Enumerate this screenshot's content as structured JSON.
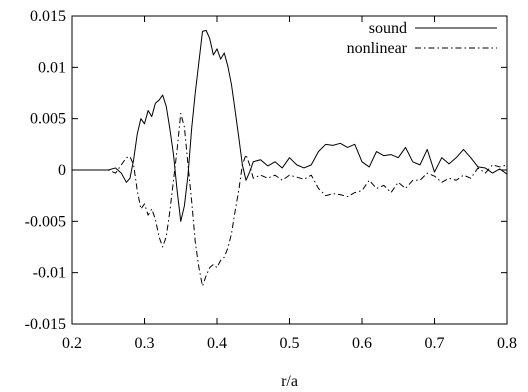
{
  "chart_data": {
    "type": "line",
    "xlabel": "r/a",
    "ylabel": "",
    "xlim": [
      0.2,
      0.8
    ],
    "ylim": [
      -0.015,
      0.015
    ],
    "xticks": [
      0.2,
      0.3,
      0.4,
      0.5,
      0.6,
      0.7,
      0.8
    ],
    "xtick_labels": [
      "0.2",
      "0.3",
      "0.4",
      "0.5",
      "0.6",
      "0.7",
      "0.8"
    ],
    "yticks": [
      -0.015,
      -0.01,
      -0.005,
      0,
      0.005,
      0.01,
      0.015
    ],
    "ytick_labels": [
      "-0.015",
      "-0.01",
      "-0.005",
      "0",
      "0.005",
      "0.01",
      "0.015"
    ],
    "grid": false,
    "legend_position": "top-right",
    "series": [
      {
        "name": "sound",
        "style": "solid",
        "color": "#000000",
        "x": [
          0.2,
          0.25,
          0.26,
          0.268,
          0.275,
          0.28,
          0.285,
          0.29,
          0.295,
          0.3,
          0.305,
          0.31,
          0.315,
          0.32,
          0.325,
          0.33,
          0.335,
          0.34,
          0.345,
          0.35,
          0.355,
          0.36,
          0.365,
          0.37,
          0.375,
          0.38,
          0.385,
          0.39,
          0.395,
          0.4,
          0.405,
          0.41,
          0.415,
          0.42,
          0.425,
          0.43,
          0.435,
          0.44,
          0.445,
          0.45,
          0.46,
          0.47,
          0.48,
          0.49,
          0.5,
          0.51,
          0.52,
          0.53,
          0.54,
          0.55,
          0.56,
          0.57,
          0.58,
          0.59,
          0.6,
          0.61,
          0.62,
          0.63,
          0.64,
          0.65,
          0.66,
          0.67,
          0.68,
          0.69,
          0.7,
          0.71,
          0.72,
          0.73,
          0.74,
          0.75,
          0.76,
          0.77,
          0.78,
          0.79,
          0.8
        ],
        "y": [
          0.0,
          0.0,
          0.0002,
          -0.0003,
          -0.0012,
          -0.0008,
          0.001,
          0.0035,
          0.005,
          0.0045,
          0.0058,
          0.0052,
          0.0065,
          0.0068,
          0.0073,
          0.0062,
          0.004,
          0.0015,
          -0.002,
          -0.005,
          -0.0035,
          -0.0005,
          0.004,
          0.0075,
          0.0105,
          0.0135,
          0.0136,
          0.0128,
          0.0112,
          0.0118,
          0.0108,
          0.0114,
          0.0101,
          0.0083,
          0.0058,
          0.0032,
          0.0005,
          -0.001,
          -0.0002,
          0.0008,
          0.001,
          0.0004,
          0.0008,
          0.0002,
          0.0012,
          0.0005,
          0.0002,
          0.0005,
          0.0018,
          0.0025,
          0.0024,
          0.0026,
          0.0022,
          0.0025,
          0.0008,
          0.0003,
          0.0018,
          0.0014,
          0.0015,
          0.0012,
          0.0022,
          0.0008,
          0.0005,
          0.002,
          -0.0002,
          0.0012,
          0.0006,
          0.0012,
          0.002,
          0.0012,
          0.0003,
          0.0002,
          -0.0003,
          0.0001,
          -0.0004
        ]
      },
      {
        "name": "nonlinear",
        "style": "dashdot",
        "color": "#000000",
        "x": [
          0.2,
          0.25,
          0.26,
          0.268,
          0.275,
          0.28,
          0.285,
          0.29,
          0.295,
          0.3,
          0.305,
          0.31,
          0.315,
          0.32,
          0.325,
          0.33,
          0.335,
          0.34,
          0.345,
          0.35,
          0.355,
          0.36,
          0.365,
          0.37,
          0.375,
          0.38,
          0.385,
          0.39,
          0.395,
          0.4,
          0.405,
          0.41,
          0.415,
          0.42,
          0.425,
          0.43,
          0.435,
          0.44,
          0.445,
          0.45,
          0.46,
          0.47,
          0.48,
          0.49,
          0.5,
          0.51,
          0.52,
          0.53,
          0.54,
          0.55,
          0.56,
          0.57,
          0.58,
          0.59,
          0.6,
          0.61,
          0.62,
          0.63,
          0.64,
          0.65,
          0.66,
          0.67,
          0.68,
          0.69,
          0.7,
          0.71,
          0.72,
          0.73,
          0.74,
          0.75,
          0.76,
          0.77,
          0.78,
          0.79,
          0.8
        ],
        "y": [
          0.0,
          0.0,
          -0.0003,
          0.0005,
          0.0012,
          0.0013,
          0.0005,
          -0.002,
          -0.0038,
          -0.0033,
          -0.0044,
          -0.0038,
          -0.0048,
          -0.0065,
          -0.0075,
          -0.0065,
          -0.004,
          -0.001,
          0.002,
          0.0055,
          0.0042,
          0.0005,
          -0.003,
          -0.007,
          -0.0095,
          -0.0113,
          -0.0103,
          -0.0095,
          -0.0092,
          -0.0095,
          -0.0088,
          -0.0085,
          -0.0076,
          -0.0062,
          -0.004,
          -0.002,
          0.0005,
          0.0015,
          0.0005,
          -0.0008,
          -0.0005,
          -0.0008,
          -0.0005,
          -0.001,
          -0.0005,
          -0.0007,
          -0.0009,
          -0.0005,
          -0.0018,
          -0.0025,
          -0.0023,
          -0.0024,
          -0.0026,
          -0.0022,
          -0.002,
          -0.001,
          -0.0018,
          -0.0015,
          -0.0022,
          -0.0012,
          -0.0018,
          -0.001,
          -0.001,
          -0.0003,
          -0.0006,
          -0.0012,
          -0.0008,
          -0.001,
          -0.0005,
          -0.0008,
          0.0002,
          -0.0003,
          0.0005,
          0.0003,
          0.0005
        ]
      }
    ]
  }
}
